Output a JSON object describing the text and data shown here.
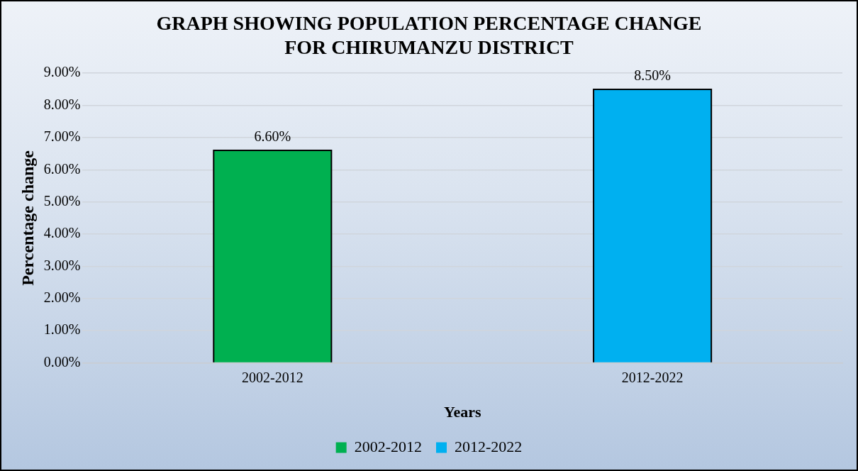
{
  "chart_data": {
    "type": "bar",
    "title": "GRAPH SHOWING POPULATION PERCENTAGE CHANGE\nFOR CHIRUMANZU DISTRICT",
    "xlabel": "Years",
    "ylabel": "Percentage change",
    "categories": [
      "2002-2012",
      "2012-2022"
    ],
    "series": [
      {
        "name": "2002-2012",
        "color": "#00b050",
        "values": [
          6.6,
          null
        ],
        "value_labels": [
          "6.60%",
          null
        ]
      },
      {
        "name": "2012-2022",
        "color": "#00b0f0",
        "values": [
          null,
          8.5
        ],
        "value_labels": [
          null,
          "8.50%"
        ]
      }
    ],
    "ylim": [
      0,
      9
    ],
    "yticks": [
      {
        "value": 0,
        "label": "0.00%"
      },
      {
        "value": 1,
        "label": "1.00%"
      },
      {
        "value": 2,
        "label": "2.00%"
      },
      {
        "value": 3,
        "label": "3.00%"
      },
      {
        "value": 4,
        "label": "4.00%"
      },
      {
        "value": 5,
        "label": "5.00%"
      },
      {
        "value": 6,
        "label": "6.00%"
      },
      {
        "value": 7,
        "label": "7.00%"
      },
      {
        "value": 8,
        "label": "8.00%"
      },
      {
        "value": 9,
        "label": "9.00%"
      }
    ],
    "grid": "y",
    "legend": "bottom"
  }
}
